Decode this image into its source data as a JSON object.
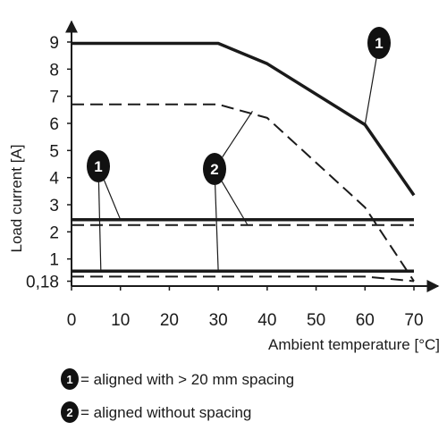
{
  "chart_data": {
    "type": "line",
    "xlabel": "Ambient temperature [°C]",
    "ylabel": "Load current [A]",
    "xlim": [
      0,
      70
    ],
    "ylim": [
      0,
      9
    ],
    "x_ticks": [
      "0",
      "10",
      "20",
      "30",
      "40",
      "50",
      "60",
      "70"
    ],
    "y_ticks": [
      "9",
      "8",
      "7",
      "6",
      "5",
      "4",
      "3",
      "2",
      "1",
      "0,18"
    ],
    "grid": false,
    "series": [
      {
        "name": "1",
        "style": "solid",
        "points": [
          [
            0,
            8.95
          ],
          [
            30,
            8.95
          ],
          [
            40,
            8.2
          ],
          [
            60,
            5.95
          ],
          [
            70,
            3.35
          ]
        ]
      },
      {
        "name": "2",
        "style": "dashed",
        "points": [
          [
            0,
            6.7
          ],
          [
            30,
            6.7
          ],
          [
            40,
            6.2
          ],
          [
            60,
            2.9
          ],
          [
            70,
            0.18
          ]
        ]
      },
      {
        "name": "1",
        "style": "solid",
        "points": [
          [
            0,
            2.45
          ],
          [
            70,
            2.45
          ]
        ]
      },
      {
        "name": "2",
        "style": "dashed",
        "points": [
          [
            0,
            2.25
          ],
          [
            70,
            2.25
          ]
        ]
      },
      {
        "name": "1",
        "style": "solid",
        "points": [
          [
            0,
            0.55
          ],
          [
            70,
            0.55
          ]
        ]
      },
      {
        "name": "2",
        "style": "dashed",
        "points": [
          [
            0,
            0.35
          ],
          [
            60,
            0.35
          ],
          [
            70,
            0.18
          ]
        ]
      }
    ],
    "annotations": [
      {
        "label": "1",
        "points_to": [
          60,
          5.95
        ]
      },
      {
        "label": "2",
        "points_to": [
          37,
          6.45
        ]
      },
      {
        "label": "1",
        "points_to": [
          10,
          2.45
        ]
      },
      {
        "label": "1",
        "points_to": [
          6,
          0.55
        ]
      },
      {
        "label": "2",
        "points_to": [
          36,
          2.25
        ]
      },
      {
        "label": "2",
        "points_to": [
          30,
          0.55
        ]
      }
    ],
    "legend": [
      {
        "badge": "1",
        "text": "= aligned with > 20 mm spacing"
      },
      {
        "badge": "2",
        "text": "= aligned without spacing"
      }
    ],
    "legend_position": "bottom-left"
  }
}
